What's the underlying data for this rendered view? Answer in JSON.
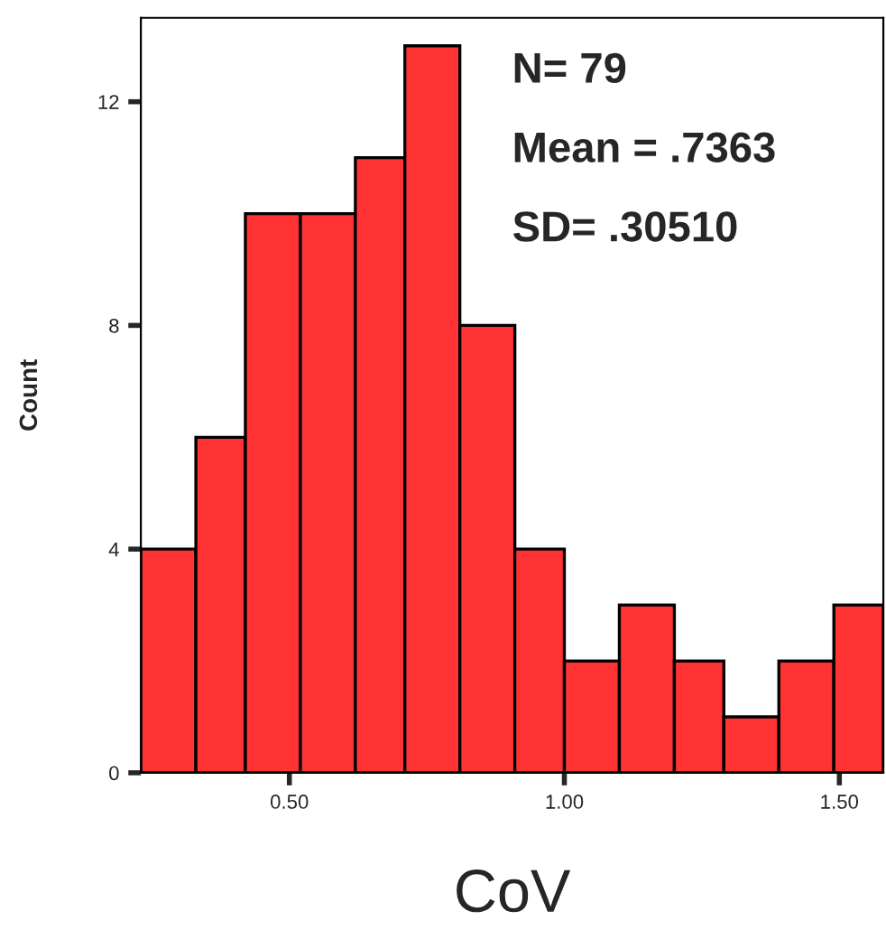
{
  "chart_data": {
    "type": "histogram",
    "xlabel": "CoV",
    "ylabel": "Count",
    "bins": [
      0.23,
      0.33,
      0.42,
      0.52,
      0.62,
      0.71,
      0.81,
      0.91,
      1.0,
      1.1,
      1.2,
      1.29,
      1.39,
      1.49,
      1.58
    ],
    "values": [
      4,
      6,
      10,
      10,
      11,
      13,
      8,
      4,
      2,
      3,
      2,
      1,
      2,
      3
    ],
    "color": "#ff3333",
    "xlim": [
      0.23,
      1.58
    ],
    "xticks": [
      {
        "value": 0.5,
        "label": "0.50"
      },
      {
        "value": 1.0,
        "label": "1.00"
      },
      {
        "value": 1.5,
        "label": "1.50"
      }
    ],
    "ylim": [
      0,
      13.5
    ],
    "yticks": [
      0,
      4,
      8,
      12
    ],
    "grid": false,
    "legend": false,
    "annotations": [
      "N= 79",
      "Mean = .7363",
      "SD= .30510"
    ]
  }
}
